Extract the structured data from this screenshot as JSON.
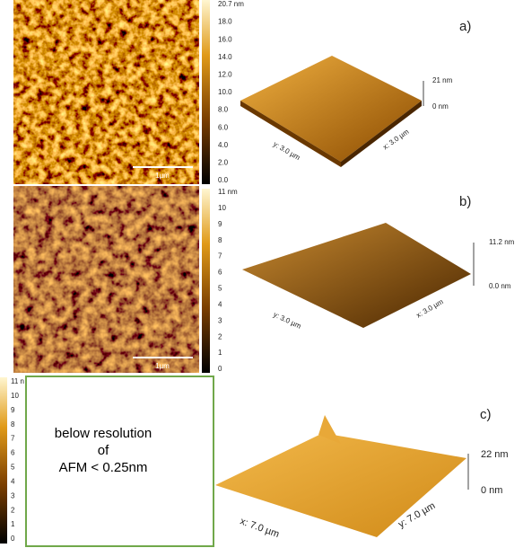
{
  "panels": [
    {
      "label": "a)",
      "colorbar": [
        "20.7 nm",
        "18.0",
        "16.0",
        "14.0",
        "12.0",
        "10.0",
        "8.0",
        "6.0",
        "4.0",
        "2.0",
        "0.0"
      ],
      "scale_bar": "1µm",
      "surface": {
        "z_max": "21 nm",
        "z_min": "0 nm",
        "y_axis": "y: 3.0 µm",
        "x_axis": "x: 3.0 µm"
      }
    },
    {
      "label": "b)",
      "colorbar": [
        "11 nm",
        "10",
        "9",
        "8",
        "7",
        "6",
        "5",
        "4",
        "3",
        "2",
        "1",
        "0"
      ],
      "scale_bar": "1µm",
      "surface": {
        "z_max": "11.2 nm",
        "z_min": "0.0 nm",
        "y_axis": "y: 3.0 µm",
        "x_axis": "x: 3.0 µm"
      }
    },
    {
      "label": "c)",
      "colorbar": [
        "11 n",
        "10",
        "9",
        "8",
        "7",
        "6",
        "5",
        "4",
        "3",
        "2",
        "1",
        "0"
      ],
      "surface": {
        "z_max": "22 nm",
        "z_min": "0 nm",
        "y_axis": "y: 7.0 µm",
        "x_axis": "x: 7.0 µm"
      }
    }
  ],
  "note": {
    "lines": [
      "below resolution",
      "of",
      "AFM  < 0.25nm"
    ]
  }
}
